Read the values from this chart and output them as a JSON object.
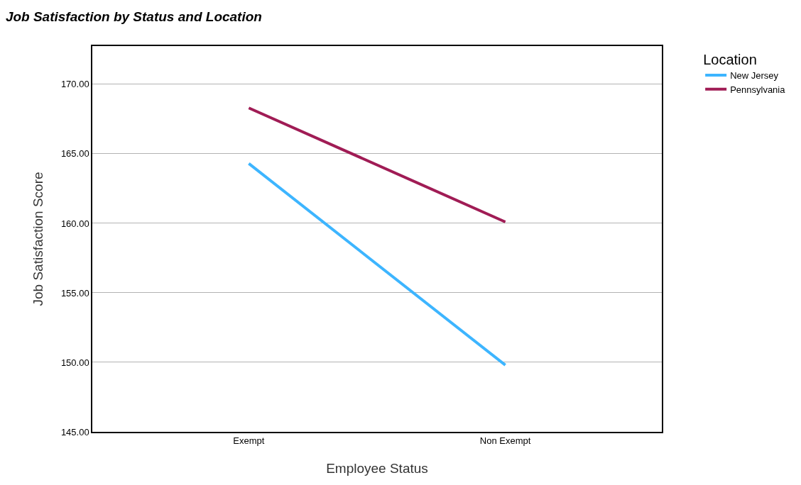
{
  "chart_data": {
    "type": "line",
    "title": "Job Satisfaction by Status and Location",
    "xlabel": "Employee Status",
    "ylabel": "Job Satisfaction Score",
    "legend_title": "Location",
    "categories": [
      "Exempt",
      "Non Exempt"
    ],
    "series": [
      {
        "name": "New Jersey",
        "color": "#3db5ff",
        "values": [
          164.3,
          149.8
        ]
      },
      {
        "name": "Pennsylvania",
        "color": "#a01c55",
        "values": [
          168.3,
          160.1
        ]
      }
    ],
    "ylim": [
      145,
      172.75
    ],
    "yticks": [
      {
        "value": 145,
        "label": "145.00"
      },
      {
        "value": 150,
        "label": "150.00"
      },
      {
        "value": 155,
        "label": "155.00"
      },
      {
        "value": 160,
        "label": "160.00"
      },
      {
        "value": 165,
        "label": "165.00"
      },
      {
        "value": 170,
        "label": "170.00"
      }
    ],
    "grid": "y",
    "legend": "top right",
    "marker": "none",
    "line_style": "solid"
  }
}
